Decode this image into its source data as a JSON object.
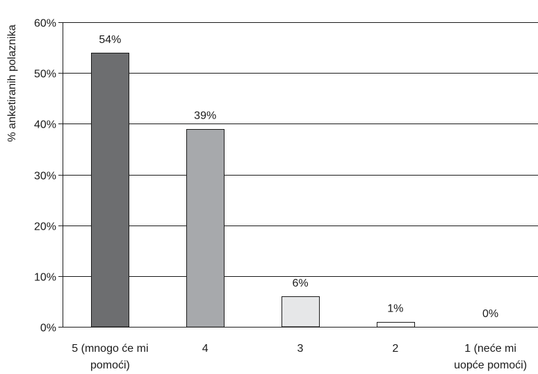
{
  "chart_data": {
    "type": "bar",
    "categories": [
      [
        "5 (mnogo će mi",
        "pomoći)"
      ],
      [
        "4"
      ],
      [
        "3"
      ],
      [
        "2"
      ],
      [
        "1 (neće mi",
        "uopće pomoći)"
      ]
    ],
    "values": [
      54,
      39,
      6,
      1,
      0
    ],
    "data_labels": [
      "54%",
      "39%",
      "6%",
      "1%",
      "0%"
    ],
    "bar_colors": [
      "#6d6e70",
      "#a7a9ac",
      "#e6e7e8",
      "#ffffff",
      "#ffffff"
    ],
    "ylabel": "% anketiranih polaznika",
    "ylim": [
      0,
      60
    ],
    "yticks": [
      0,
      10,
      20,
      30,
      40,
      50,
      60
    ],
    "ytick_labels": [
      "0%",
      "10%",
      "20%",
      "30%",
      "40%",
      "50%",
      "60%"
    ],
    "grid": true,
    "legend": "none"
  }
}
